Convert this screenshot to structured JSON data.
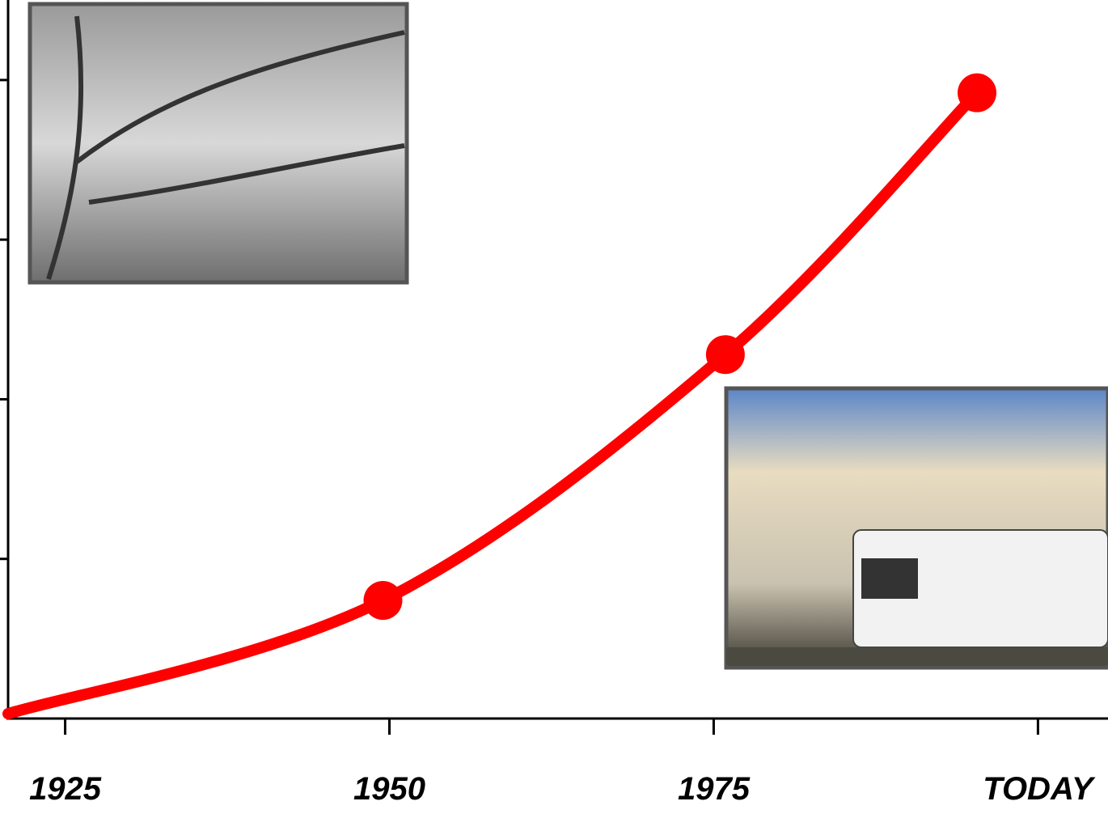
{
  "chart_data": {
    "type": "line",
    "x": [
      1920.6,
      1949.5,
      1975.9,
      1995.3
    ],
    "series": [
      {
        "color": "#ff0000",
        "values": [
          0.03,
          0.74,
          2.28,
          3.92
        ],
        "markers": [
          false,
          true,
          true,
          true
        ]
      }
    ],
    "xlim": [
      1920.6,
      2005.4
    ],
    "xticks": [
      1925,
      1950,
      1975,
      {
        "value": 2000,
        "label": "TODAY"
      }
    ],
    "ylim": [
      0,
      4.5
    ],
    "yticks": [
      1,
      2,
      3,
      4
    ]
  }
}
